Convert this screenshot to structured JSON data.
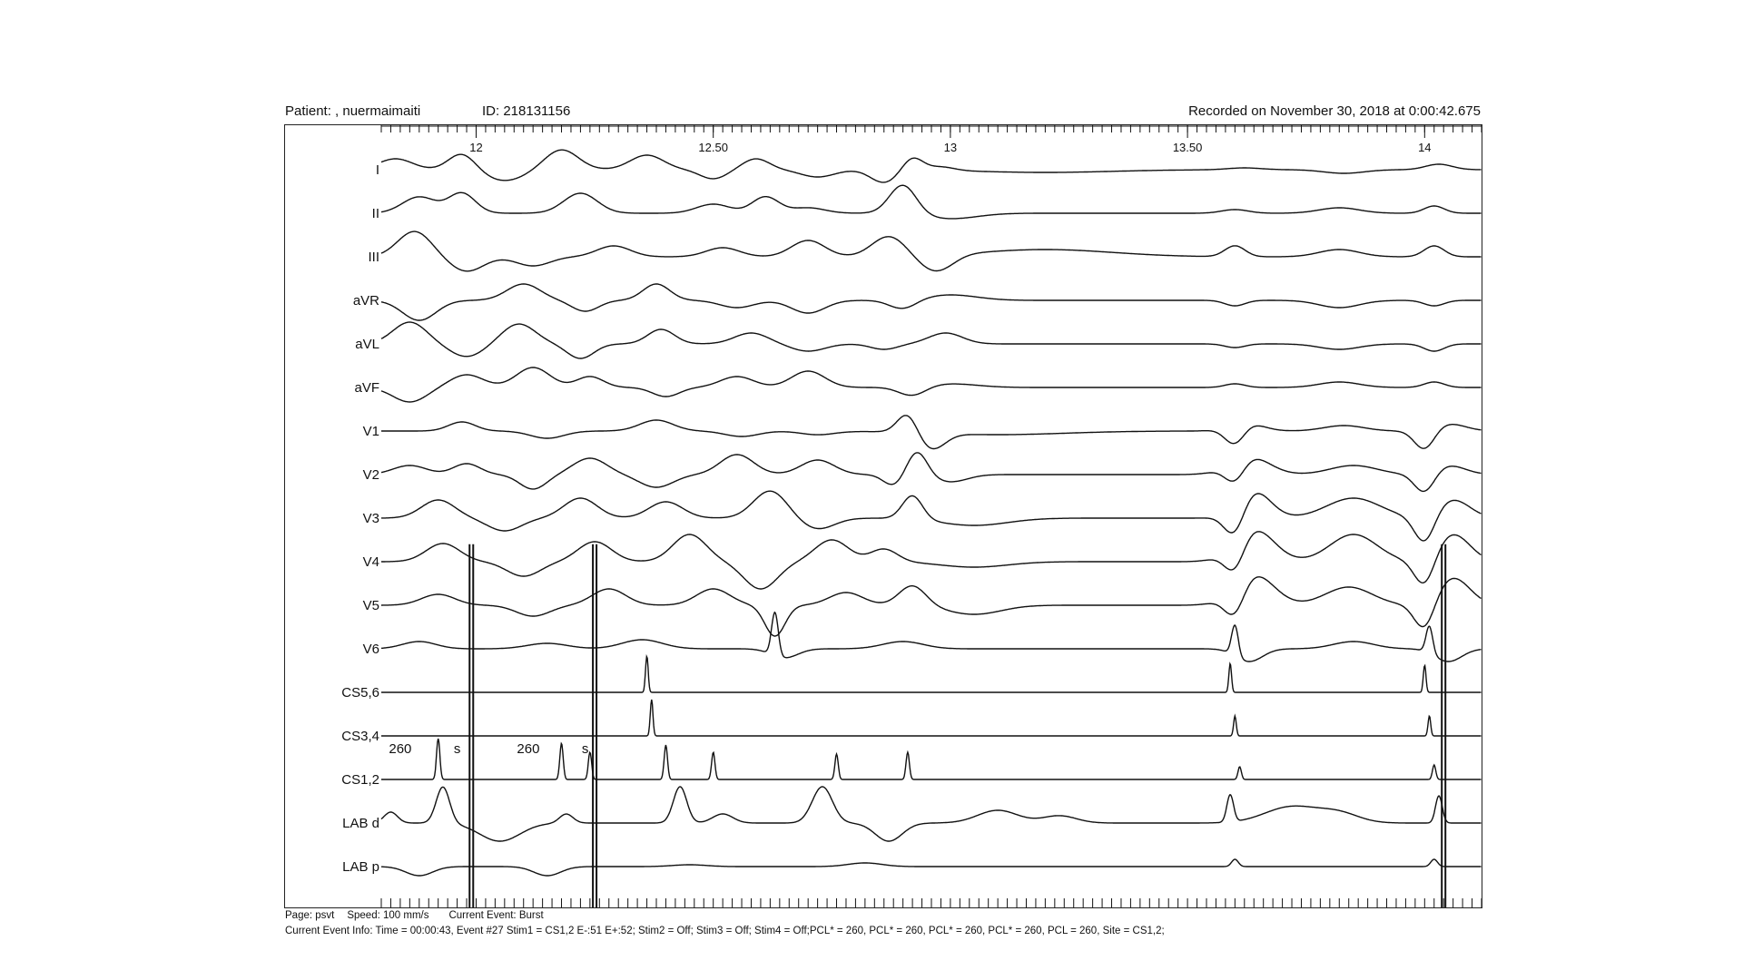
{
  "header": {
    "patient_label": "Patient: , nuermaimaiti",
    "id_label": "ID: 218131156",
    "recorded": "Recorded on November 30, 2018 at  0:00:42.675"
  },
  "footer": {
    "page": "Page: psvt",
    "speed": "Speed: 100 mm/s",
    "current_event": "Current Event: Burst",
    "event_info": "Current Event Info: Time = 00:00:43,  Event #27   Stim1 = CS1,2 E-:51 E+:52;  Stim2 = Off;  Stim3 = Off;  Stim4 = Off;PCL* = 260,  PCL* = 260,  PCL* = 260,  PCL* = 260,  PCL = 260,    Site = CS1,2;"
  },
  "annotations": [
    {
      "text": "260",
      "t": 11.84
    },
    {
      "text": "s",
      "t": 11.96
    },
    {
      "text": "260",
      "t": 12.11
    },
    {
      "text": "s",
      "t": 12.23
    }
  ],
  "colors": {
    "trace": "#111111",
    "frame": "#222222",
    "stim": "#111111"
  },
  "chart_data": {
    "type": "line",
    "title": "",
    "x_unit": "s",
    "xlim": [
      11.8,
      14.12
    ],
    "x_ticks": [
      {
        "value": 12,
        "label": "12"
      },
      {
        "value": 12.5,
        "label": "12.50"
      },
      {
        "value": 13,
        "label": "13"
      },
      {
        "value": 13.5,
        "label": "13.50"
      },
      {
        "value": 14,
        "label": "14"
      }
    ],
    "minor_tick_step": 0.02,
    "stim_markers": [
      11.99,
      12.25,
      14.04
    ],
    "channels": [
      {
        "name": "I",
        "events": [
          [
            11.83,
            -12,
            0.05
          ],
          [
            11.97,
            -18,
            0.04
          ],
          [
            12.06,
            12,
            0.06
          ],
          [
            12.18,
            -22,
            0.05
          ],
          [
            12.36,
            -16,
            0.05
          ],
          [
            12.5,
            10,
            0.04
          ],
          [
            12.59,
            -12,
            0.04
          ],
          [
            12.72,
            8,
            0.05
          ],
          [
            12.86,
            14,
            0.04
          ],
          [
            12.92,
            -14,
            0.03
          ],
          [
            12.98,
            -4,
            0.04
          ],
          [
            13.2,
            3,
            0.2
          ],
          [
            13.62,
            -2,
            0.05
          ],
          [
            13.83,
            4,
            0.06
          ],
          [
            14.03,
            -6,
            0.04
          ]
        ]
      },
      {
        "name": "II",
        "events": [
          [
            11.88,
            -18,
            0.05
          ],
          [
            11.97,
            -22,
            0.04
          ],
          [
            12.22,
            -22,
            0.05
          ],
          [
            12.5,
            -10,
            0.05
          ],
          [
            12.61,
            -18,
            0.04
          ],
          [
            12.7,
            -6,
            0.05
          ],
          [
            12.9,
            -32,
            0.04
          ],
          [
            13.0,
            6,
            0.08
          ],
          [
            13.6,
            -4,
            0.04
          ],
          [
            13.82,
            -6,
            0.06
          ],
          [
            14.02,
            -8,
            0.03
          ]
        ]
      },
      {
        "name": "III",
        "events": [
          [
            11.87,
            -28,
            0.05
          ],
          [
            11.98,
            16,
            0.05
          ],
          [
            12.12,
            10,
            0.05
          ],
          [
            12.29,
            -12,
            0.05
          ],
          [
            12.52,
            -10,
            0.05
          ],
          [
            12.7,
            -18,
            0.05
          ],
          [
            12.87,
            -22,
            0.05
          ],
          [
            12.97,
            18,
            0.05
          ],
          [
            13.2,
            -8,
            0.2
          ],
          [
            13.6,
            -12,
            0.03
          ],
          [
            13.82,
            -8,
            0.06
          ],
          [
            14.02,
            -12,
            0.03
          ]
        ]
      },
      {
        "name": "aVR",
        "events": [
          [
            11.88,
            22,
            0.05
          ],
          [
            12.1,
            -18,
            0.05
          ],
          [
            12.23,
            12,
            0.04
          ],
          [
            12.38,
            -18,
            0.04
          ],
          [
            12.55,
            8,
            0.05
          ],
          [
            12.7,
            14,
            0.05
          ],
          [
            12.9,
            10,
            0.04
          ],
          [
            13.0,
            -6,
            0.08
          ],
          [
            13.6,
            6,
            0.03
          ],
          [
            13.82,
            8,
            0.06
          ],
          [
            14.02,
            6,
            0.03
          ]
        ]
      },
      {
        "name": "aVL",
        "events": [
          [
            11.86,
            -24,
            0.05
          ],
          [
            11.98,
            14,
            0.05
          ],
          [
            12.09,
            -22,
            0.05
          ],
          [
            12.22,
            16,
            0.04
          ],
          [
            12.39,
            -16,
            0.04
          ],
          [
            12.58,
            -12,
            0.05
          ],
          [
            12.7,
            8,
            0.05
          ],
          [
            12.86,
            6,
            0.04
          ],
          [
            12.99,
            -12,
            0.05
          ],
          [
            13.6,
            4,
            0.03
          ],
          [
            13.82,
            6,
            0.06
          ],
          [
            14.02,
            8,
            0.03
          ]
        ]
      },
      {
        "name": "aVF",
        "events": [
          [
            11.86,
            16,
            0.05
          ],
          [
            11.98,
            -14,
            0.05
          ],
          [
            12.12,
            -22,
            0.05
          ],
          [
            12.24,
            -12,
            0.04
          ],
          [
            12.4,
            10,
            0.04
          ],
          [
            12.55,
            -12,
            0.05
          ],
          [
            12.7,
            -18,
            0.05
          ],
          [
            12.92,
            10,
            0.04
          ],
          [
            13.0,
            -4,
            0.08
          ],
          [
            13.6,
            -4,
            0.03
          ],
          [
            13.82,
            -6,
            0.06
          ],
          [
            14.02,
            -6,
            0.03
          ]
        ]
      },
      {
        "name": "V1",
        "events": [
          [
            11.97,
            -10,
            0.04
          ],
          [
            12.15,
            8,
            0.05
          ],
          [
            12.38,
            -12,
            0.05
          ],
          [
            12.56,
            6,
            0.05
          ],
          [
            12.72,
            4,
            0.05
          ],
          [
            12.91,
            -22,
            0.03
          ],
          [
            12.96,
            18,
            0.04
          ],
          [
            13.1,
            4,
            0.2
          ],
          [
            13.6,
            22,
            0.03
          ],
          [
            13.62,
            -10,
            0.05
          ],
          [
            13.83,
            -6,
            0.06
          ],
          [
            14.0,
            22,
            0.03
          ],
          [
            14.05,
            -8,
            0.05
          ]
        ]
      },
      {
        "name": "V2",
        "events": [
          [
            11.86,
            -10,
            0.05
          ],
          [
            11.98,
            -12,
            0.04
          ],
          [
            12.12,
            16,
            0.04
          ],
          [
            12.24,
            -18,
            0.05
          ],
          [
            12.38,
            14,
            0.05
          ],
          [
            12.55,
            -22,
            0.05
          ],
          [
            12.72,
            -16,
            0.05
          ],
          [
            12.88,
            12,
            0.03
          ],
          [
            12.93,
            -26,
            0.03
          ],
          [
            13.0,
            8,
            0.05
          ],
          [
            13.6,
            22,
            0.03
          ],
          [
            13.63,
            -20,
            0.06
          ],
          [
            13.85,
            -10,
            0.07
          ],
          [
            14.0,
            22,
            0.03
          ],
          [
            14.05,
            -10,
            0.05
          ]
        ]
      },
      {
        "name": "V3",
        "events": [
          [
            11.92,
            -20,
            0.05
          ],
          [
            12.06,
            14,
            0.05
          ],
          [
            12.22,
            -22,
            0.05
          ],
          [
            12.4,
            -18,
            0.05
          ],
          [
            12.62,
            -30,
            0.05
          ],
          [
            12.72,
            12,
            0.05
          ],
          [
            12.92,
            -26,
            0.03
          ],
          [
            13.05,
            8,
            0.1
          ],
          [
            13.6,
            30,
            0.03
          ],
          [
            13.64,
            -30,
            0.05
          ],
          [
            13.85,
            -22,
            0.08
          ],
          [
            14.0,
            30,
            0.03
          ],
          [
            14.06,
            -20,
            0.05
          ]
        ]
      },
      {
        "name": "V4",
        "events": [
          [
            11.93,
            -20,
            0.05
          ],
          [
            12.1,
            16,
            0.05
          ],
          [
            12.25,
            -22,
            0.05
          ],
          [
            12.45,
            -30,
            0.05
          ],
          [
            12.6,
            30,
            0.05
          ],
          [
            12.75,
            -24,
            0.05
          ],
          [
            12.86,
            -14,
            0.04
          ],
          [
            13.05,
            6,
            0.1
          ],
          [
            13.6,
            30,
            0.03
          ],
          [
            13.64,
            -36,
            0.06
          ],
          [
            13.85,
            -30,
            0.07
          ],
          [
            14.0,
            30,
            0.03
          ],
          [
            14.06,
            -30,
            0.05
          ]
        ]
      },
      {
        "name": "V5",
        "events": [
          [
            11.92,
            -12,
            0.05
          ],
          [
            12.12,
            12,
            0.05
          ],
          [
            12.28,
            -18,
            0.05
          ],
          [
            12.5,
            -18,
            0.05
          ],
          [
            12.63,
            34,
            0.03
          ],
          [
            12.78,
            -14,
            0.05
          ],
          [
            12.92,
            -22,
            0.04
          ],
          [
            13.05,
            10,
            0.08
          ],
          [
            13.6,
            30,
            0.03
          ],
          [
            13.64,
            -34,
            0.06
          ],
          [
            13.84,
            -20,
            0.07
          ],
          [
            14.0,
            30,
            0.03
          ],
          [
            14.06,
            -30,
            0.05
          ]
        ]
      },
      {
        "name": "V6",
        "events": [
          [
            11.88,
            -8,
            0.05
          ],
          [
            12.15,
            -6,
            0.06
          ],
          [
            12.35,
            -10,
            0.06
          ],
          [
            12.63,
            -48,
            0.01
          ],
          [
            12.65,
            10,
            0.04
          ],
          [
            12.9,
            -8,
            0.06
          ],
          [
            13.6,
            -34,
            0.01
          ],
          [
            13.63,
            14,
            0.04
          ],
          [
            13.85,
            -8,
            0.06
          ],
          [
            14.01,
            -30,
            0.01
          ],
          [
            14.05,
            14,
            0.04
          ]
        ]
      },
      {
        "name": "CS5,6",
        "events": [
          [
            12.36,
            -40,
            0.004
          ],
          [
            13.59,
            -32,
            0.004
          ],
          [
            14.0,
            -30,
            0.004
          ]
        ]
      },
      {
        "name": "CS3,4",
        "events": [
          [
            12.37,
            -40,
            0.004
          ],
          [
            13.6,
            -22,
            0.004
          ],
          [
            14.01,
            -22,
            0.004
          ]
        ]
      },
      {
        "name": "CS1,2",
        "events": [
          [
            11.92,
            -45,
            0.005
          ],
          [
            12.18,
            -40,
            0.005
          ],
          [
            12.24,
            -30,
            0.005
          ],
          [
            12.4,
            -38,
            0.005
          ],
          [
            12.5,
            -30,
            0.005
          ],
          [
            12.76,
            -28,
            0.005
          ],
          [
            12.91,
            -30,
            0.005
          ],
          [
            13.61,
            -14,
            0.005
          ],
          [
            14.02,
            -16,
            0.005
          ]
        ]
      },
      {
        "name": "LAB d",
        "events": [
          [
            11.82,
            -12,
            0.02
          ],
          [
            11.93,
            -40,
            0.02
          ],
          [
            12.05,
            20,
            0.06
          ],
          [
            12.19,
            -10,
            0.02
          ],
          [
            12.43,
            -40,
            0.02
          ],
          [
            12.52,
            -10,
            0.03
          ],
          [
            12.73,
            -40,
            0.03
          ],
          [
            12.87,
            20,
            0.04
          ],
          [
            13.1,
            -14,
            0.06
          ],
          [
            13.23,
            -8,
            0.05
          ],
          [
            13.59,
            -30,
            0.01
          ],
          [
            13.72,
            -18,
            0.08
          ],
          [
            13.82,
            -10,
            0.06
          ],
          [
            14.03,
            -30,
            0.01
          ]
        ]
      },
      {
        "name": "LAB p",
        "events": [
          [
            11.88,
            10,
            0.04
          ],
          [
            12.15,
            10,
            0.04
          ],
          [
            12.45,
            -2,
            0.05
          ],
          [
            12.82,
            -4,
            0.05
          ],
          [
            13.6,
            -8,
            0.01
          ],
          [
            14.02,
            -8,
            0.01
          ]
        ]
      }
    ]
  }
}
